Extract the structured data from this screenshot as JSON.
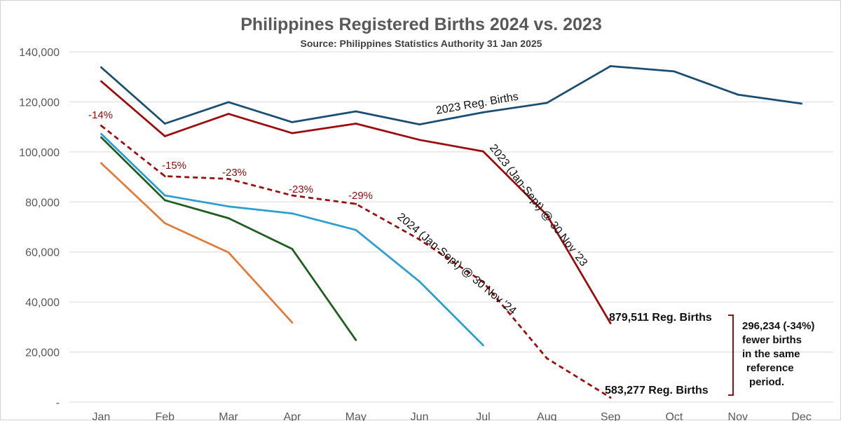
{
  "chart_data": {
    "type": "line",
    "title": "Philippines Registered Births 2024 vs. 2023",
    "subtitle": "Source: Philippines Statistics Authority 31 Jan 2025",
    "categories": [
      "Jan",
      "Feb",
      "Mar",
      "Apr",
      "May",
      "Jun",
      "Jul",
      "Aug",
      "Sep",
      "Oct",
      "Nov",
      "Dec"
    ],
    "ylim": [
      0,
      140000
    ],
    "yticks": [
      {
        "value": 0,
        "label": "-"
      },
      {
        "value": 20000,
        "label": "20,000"
      },
      {
        "value": 40000,
        "label": "40,000"
      },
      {
        "value": 60000,
        "label": "60,000"
      },
      {
        "value": 80000,
        "label": "80,000"
      },
      {
        "value": 100000,
        "label": "100,000"
      },
      {
        "value": 120000,
        "label": "120,000"
      },
      {
        "value": 140000,
        "label": "140,000"
      }
    ],
    "grid": true,
    "series": [
      {
        "name": "2023 Reg. Births",
        "color": "#1a4f72",
        "dashed": false,
        "values": [
          133800,
          111300,
          119900,
          111900,
          116200,
          111000,
          115800,
          119600,
          134300,
          132200,
          122900,
          119300
        ]
      },
      {
        "name": "2023 (Jan-Sept) @ 30 Nov '23",
        "color": "#9b0d0d",
        "dashed": false,
        "values": [
          128200,
          106300,
          115200,
          107500,
          111300,
          104800,
          100200,
          74800,
          31500,
          null,
          null,
          null
        ]
      },
      {
        "name": "2024 (Jan-Sept) @ 30 Nov '24",
        "color": "#9b0d0d",
        "dashed": true,
        "values": [
          110500,
          90300,
          89200,
          82600,
          79200,
          65000,
          48000,
          17500,
          1800,
          null,
          null,
          null
        ]
      },
      {
        "color": "#2a9fd0",
        "dashed": false,
        "values": [
          107200,
          82600,
          78200,
          75400,
          68800,
          48200,
          22700,
          null,
          null,
          null,
          null,
          null
        ]
      },
      {
        "color": "#1e5e1e",
        "dashed": false,
        "values": [
          105800,
          80700,
          73500,
          61200,
          24800,
          null,
          null,
          null,
          null,
          null,
          null,
          null
        ]
      },
      {
        "color": "#e07b39",
        "dashed": false,
        "values": [
          95500,
          71500,
          59800,
          31800,
          null,
          null,
          null,
          null,
          null,
          null,
          null,
          null
        ]
      }
    ],
    "annotations": {
      "pct_changes": [
        {
          "index": 0,
          "label": "-14%"
        },
        {
          "index": 1,
          "label": "-15%"
        },
        {
          "index": 2,
          "label": "-23%"
        },
        {
          "index": 3,
          "label": "-23%"
        },
        {
          "index": 4,
          "label": "-29%"
        }
      ],
      "total_2023": "879,511 Reg. Births",
      "total_2024": "583,277 Reg. Births",
      "difference": [
        "296,234 (-34%)",
        " fewer births",
        "in the same",
        "reference",
        "period."
      ]
    }
  }
}
